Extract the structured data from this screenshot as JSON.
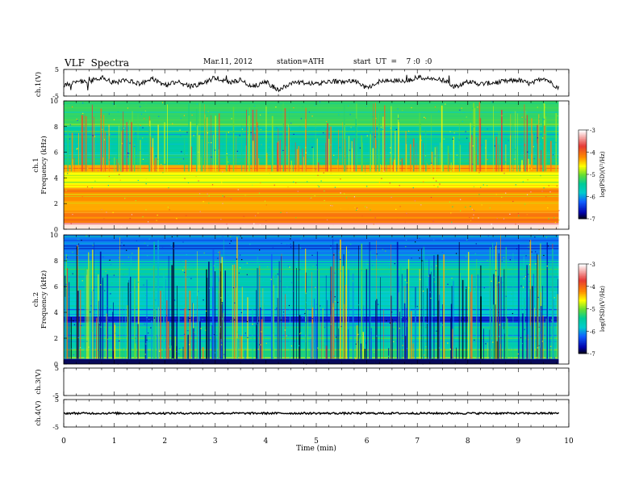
{
  "header": {
    "title": "VLF  Spectra",
    "date": "Mar.11, 2012",
    "station": "station=ATH",
    "start": "start  UT  =    7 :0  :0"
  },
  "colorbar": {
    "label": "log(PSD)(V²/Hz)",
    "ticks": [
      "-3",
      "-4",
      "-5",
      "-6",
      "-7"
    ],
    "stops": [
      "#ffffff",
      "#e53935",
      "#ff8c00",
      "#ffff00",
      "#66dd33",
      "#00cc99",
      "#00cccc",
      "#1060ff",
      "#0000aa",
      "#000000"
    ]
  },
  "chart_data": [
    {
      "type": "line",
      "panel": "ch.1",
      "ylabel": "ch.1(V)",
      "ylim": [
        -5,
        5
      ],
      "yticks": [
        "5",
        "-5"
      ],
      "x_unit": "min",
      "x": [
        0,
        0.25,
        0.5,
        0.75,
        1,
        1.25,
        1.5,
        1.75,
        2,
        2.25,
        2.5,
        2.75,
        3,
        3.25,
        3.5,
        3.75,
        4,
        4.25,
        4.5,
        4.75,
        5,
        5.25,
        5.5,
        5.75,
        6,
        6.25,
        6.5,
        6.75,
        7,
        7.25,
        7.5,
        7.75,
        8,
        8.25,
        8.5,
        8.75,
        9,
        9.25,
        9.5,
        9.8
      ],
      "values": [
        -1,
        0.5,
        0.5,
        2,
        0,
        1,
        -0.5,
        1.5,
        -1,
        0.5,
        -1.5,
        -0.5,
        2,
        0,
        1,
        -1.5,
        0.5,
        -3,
        0,
        0,
        -0.5,
        0.5,
        0.5,
        1,
        -2,
        0.5,
        1,
        0.5,
        2,
        1.5,
        1,
        -1.5,
        0.5,
        -0.5,
        0,
        0.5,
        1,
        -0.5,
        2,
        -2
      ]
    },
    {
      "type": "heatmap",
      "panel": "ch.1",
      "title": "ch.1",
      "ylabel": "Frequency  (kHz)",
      "ylim": [
        0,
        10
      ],
      "yticks": [
        "0",
        "2",
        "4",
        "6",
        "8",
        "10"
      ],
      "xlim": [
        0,
        9.8
      ],
      "bands": [
        {
          "from": 0,
          "to": 0.5,
          "level": -3.4
        },
        {
          "from": 0.5,
          "to": 1.3,
          "level": -4.1
        },
        {
          "from": 1.3,
          "to": 2.2,
          "level": -4.3
        },
        {
          "from": 2.2,
          "to": 3.2,
          "level": -4.2
        },
        {
          "from": 3.2,
          "to": 4.4,
          "level": -4.6
        },
        {
          "from": 4.4,
          "to": 5.0,
          "level": -4.3
        },
        {
          "from": 5.0,
          "to": 5.8,
          "level": -5.3
        },
        {
          "from": 5.8,
          "to": 8.0,
          "level": -5.5
        },
        {
          "from": 8.0,
          "to": 10,
          "level": -5.2
        }
      ]
    },
    {
      "type": "heatmap",
      "panel": "ch.2",
      "title": "ch.2",
      "ylabel": "Frequency  (kHz)",
      "ylim": [
        0,
        10
      ],
      "yticks": [
        "0",
        "2",
        "4",
        "6",
        "8",
        "10"
      ],
      "xlim": [
        0,
        9.8
      ],
      "bands": [
        {
          "from": 0,
          "to": 0.4,
          "level": -6.7
        },
        {
          "from": 0.4,
          "to": 1.2,
          "level": -5.3
        },
        {
          "from": 1.2,
          "to": 3.2,
          "level": -5.6
        },
        {
          "from": 3.2,
          "to": 3.7,
          "level": -6.4
        },
        {
          "from": 3.7,
          "to": 5.6,
          "level": -5.8
        },
        {
          "from": 5.6,
          "to": 8.0,
          "level": -5.6
        },
        {
          "from": 8.0,
          "to": 10,
          "level": -6.1
        }
      ]
    },
    {
      "type": "line",
      "panel": "ch.3",
      "ylabel": "ch.3(V)",
      "ylim": [
        -5,
        5
      ],
      "yticks": [
        "5",
        "-5"
      ],
      "x": [],
      "values": []
    },
    {
      "type": "line",
      "panel": "ch.4",
      "ylabel": "ch.4(V)",
      "ylim": [
        -5,
        5
      ],
      "yticks": [
        "5",
        "-5"
      ],
      "x": [
        0,
        9.8
      ],
      "values": [
        0,
        0
      ]
    }
  ],
  "xaxis": {
    "label": "Time  (min)",
    "xlim": [
      0,
      10
    ],
    "ticks": [
      "0",
      "1",
      "2",
      "3",
      "4",
      "5",
      "6",
      "7",
      "8",
      "9",
      "10"
    ]
  }
}
